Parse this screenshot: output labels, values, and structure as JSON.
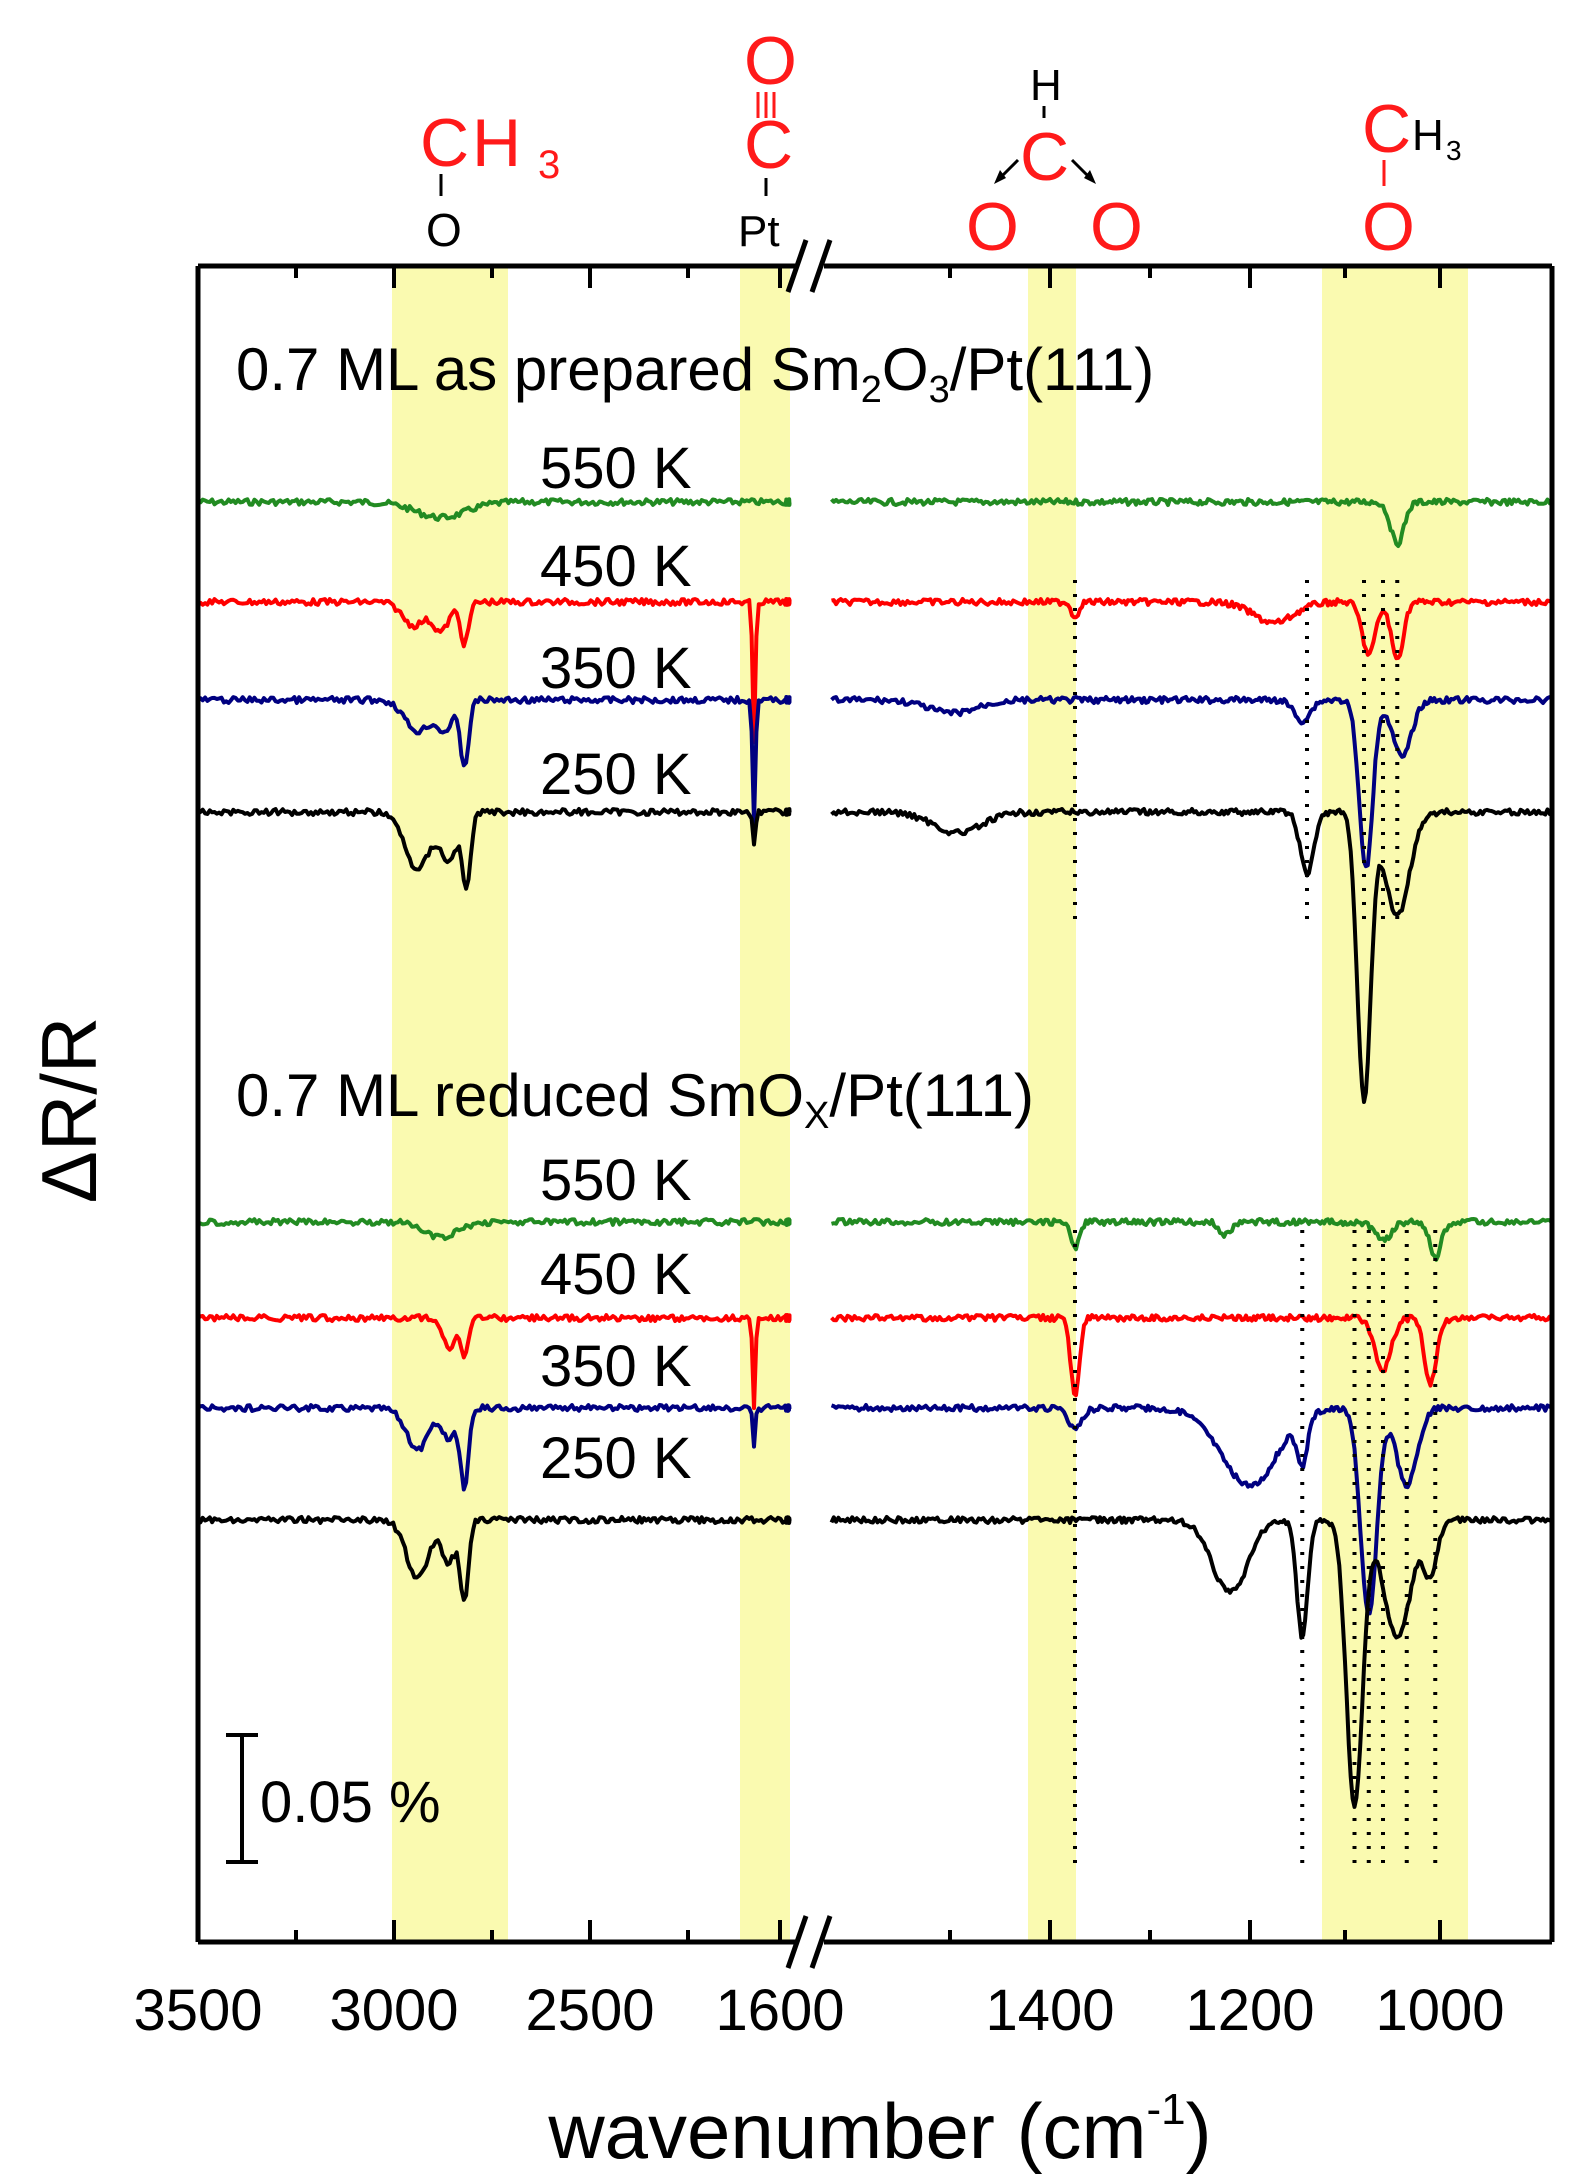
{
  "chart_data": {
    "type": "line",
    "xlabel": "wavenumber (cm-1)",
    "xlabel_main": "wavenumber (cm",
    "xlabel_sup": "-1",
    "xlabel_close": ")",
    "ylabel": "ΔR/R",
    "scale_bar_label": "0.05 %",
    "axis_break": {
      "left_range": [
        3500,
        1600
      ],
      "right_range": [
        1600,
        900
      ]
    },
    "x_ticks_left": [
      "3500",
      "3000",
      "2500",
      "1600"
    ],
    "x_ticks_right": [
      "1400",
      "1200",
      "1000"
    ],
    "highlight_bands": [
      {
        "from": 3000,
        "to": 2700,
        "label": "CH3-O"
      },
      {
        "from": 2100,
        "to": 1980,
        "label": "C≡O-Pt"
      },
      {
        "from": 1400,
        "to": 1350,
        "label": "HCOO"
      },
      {
        "from": 1115,
        "to": 985,
        "label": "CH3-O"
      }
    ],
    "labels": {
      "methoxy_left": {
        "c": "C",
        "h": "H",
        "n": "3",
        "o": "O"
      },
      "carbonyl": {
        "o": "O",
        "c": "C",
        "pt": "Pt"
      },
      "formate": {
        "h": "H",
        "c": "C",
        "o1": "O",
        "o2": "O"
      },
      "methoxy_right": {
        "c": "C",
        "h": "H",
        "n": "3",
        "o": "O"
      }
    },
    "panels": [
      {
        "sample_pre": "0.7 ML as prepared Sm",
        "sample_sub1": "2",
        "sample_mid": "O",
        "sample_sub2": "3",
        "sample_post": "/Pt(111)",
        "series": [
          {
            "name": "550 K",
            "color": "#228b22",
            "dips": [
              {
                "x": 2880,
                "d": 0.006,
                "w": 90
              },
              {
                "x": 1045,
                "d": 0.016,
                "w": 10
              }
            ]
          },
          {
            "name": "450 K",
            "color": "#ff0000",
            "dips": [
              {
                "x": 2950,
                "d": 0.009,
                "w": 40
              },
              {
                "x": 2880,
                "d": 0.011,
                "w": 30
              },
              {
                "x": 2820,
                "d": 0.016,
                "w": 15
              },
              {
                "x": 2060,
                "d": 0.055,
                "w": 5
              },
              {
                "x": 1375,
                "d": 0.006,
                "w": 5
              },
              {
                "x": 1175,
                "d": 0.008,
                "w": 30
              },
              {
                "x": 1075,
                "d": 0.02,
                "w": 10
              },
              {
                "x": 1045,
                "d": 0.022,
                "w": 9
              }
            ]
          },
          {
            "name": "350 K",
            "color": "#000080",
            "dips": [
              {
                "x": 2940,
                "d": 0.012,
                "w": 45
              },
              {
                "x": 2870,
                "d": 0.011,
                "w": 30
              },
              {
                "x": 2820,
                "d": 0.025,
                "w": 15
              },
              {
                "x": 2060,
                "d": 0.048,
                "w": 5
              },
              {
                "x": 1485,
                "d": 0.005,
                "w": 30
              },
              {
                "x": 1145,
                "d": 0.008,
                "w": 12
              },
              {
                "x": 1078,
                "d": 0.065,
                "w": 10
              },
              {
                "x": 1040,
                "d": 0.022,
                "w": 14
              }
            ]
          },
          {
            "name": "250 K",
            "color": "#000000",
            "dips": [
              {
                "x": 2940,
                "d": 0.022,
                "w": 45
              },
              {
                "x": 2860,
                "d": 0.018,
                "w": 30
              },
              {
                "x": 2815,
                "d": 0.028,
                "w": 15
              },
              {
                "x": 2060,
                "d": 0.012,
                "w": 5
              },
              {
                "x": 1480,
                "d": 0.008,
                "w": 30
              },
              {
                "x": 1140,
                "d": 0.024,
                "w": 10
              },
              {
                "x": 1080,
                "d": 0.11,
                "w": 10
              },
              {
                "x": 1045,
                "d": 0.04,
                "w": 18
              }
            ]
          }
        ]
      },
      {
        "sample_pre": "0.7 ML reduced SmO",
        "sample_sub1": "X",
        "sample_post": "/Pt(111)",
        "series": [
          {
            "name": "550 K",
            "color": "#228b22",
            "dips": [
              {
                "x": 2880,
                "d": 0.006,
                "w": 60
              },
              {
                "x": 1375,
                "d": 0.01,
                "w": 6
              },
              {
                "x": 1225,
                "d": 0.005,
                "w": 8
              },
              {
                "x": 1060,
                "d": 0.007,
                "w": 12
              },
              {
                "x": 1005,
                "d": 0.014,
                "w": 8
              }
            ]
          },
          {
            "name": "450 K",
            "color": "#ff0000",
            "dips": [
              {
                "x": 2860,
                "d": 0.012,
                "w": 20
              },
              {
                "x": 2820,
                "d": 0.014,
                "w": 15
              },
              {
                "x": 2060,
                "d": 0.035,
                "w": 5
              },
              {
                "x": 1375,
                "d": 0.03,
                "w": 6
              },
              {
                "x": 1060,
                "d": 0.02,
                "w": 12
              },
              {
                "x": 1010,
                "d": 0.025,
                "w": 9
              }
            ]
          },
          {
            "name": "350 K",
            "color": "#000080",
            "dips": [
              {
                "x": 2940,
                "d": 0.016,
                "w": 40
              },
              {
                "x": 2860,
                "d": 0.012,
                "w": 25
              },
              {
                "x": 2820,
                "d": 0.03,
                "w": 15
              },
              {
                "x": 2060,
                "d": 0.014,
                "w": 5
              },
              {
                "x": 1375,
                "d": 0.008,
                "w": 10
              },
              {
                "x": 1200,
                "d": 0.03,
                "w": 40
              },
              {
                "x": 1145,
                "d": 0.018,
                "w": 8
              },
              {
                "x": 1075,
                "d": 0.08,
                "w": 12
              },
              {
                "x": 1035,
                "d": 0.03,
                "w": 15
              }
            ]
          },
          {
            "name": "250 K",
            "color": "#000000",
            "dips": [
              {
                "x": 2940,
                "d": 0.022,
                "w": 40
              },
              {
                "x": 2860,
                "d": 0.016,
                "w": 25
              },
              {
                "x": 2820,
                "d": 0.03,
                "w": 15
              },
              {
                "x": 1220,
                "d": 0.028,
                "w": 25
              },
              {
                "x": 1145,
                "d": 0.045,
                "w": 8
              },
              {
                "x": 1090,
                "d": 0.11,
                "w": 12
              },
              {
                "x": 1045,
                "d": 0.045,
                "w": 20
              },
              {
                "x": 1010,
                "d": 0.02,
                "w": 10
              }
            ]
          }
        ]
      }
    ],
    "dotted_markers": [
      {
        "x": 1375,
        "panel": 0
      },
      {
        "x": 1140,
        "panel": 0
      },
      {
        "x": 1080,
        "panel": 0
      },
      {
        "x": 1060,
        "panel": 0
      },
      {
        "x": 1045,
        "panel": 0
      },
      {
        "x": 1375,
        "panel": 1
      },
      {
        "x": 1145,
        "panel": 1
      },
      {
        "x": 1090,
        "panel": 1
      },
      {
        "x": 1075,
        "panel": 1
      },
      {
        "x": 1060,
        "panel": 1
      },
      {
        "x": 1035,
        "panel": 1
      },
      {
        "x": 1005,
        "panel": 1
      }
    ]
  }
}
